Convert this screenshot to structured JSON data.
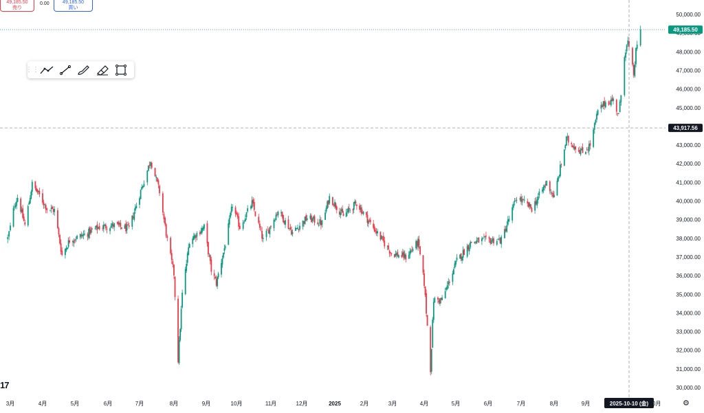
{
  "trade": {
    "sell_price": "49,185.50",
    "sell_label": "売り",
    "spread": "0.00",
    "buy_price": "49,185.50",
    "buy_label": "買い"
  },
  "crosshair": {
    "price_label": "43,917.56",
    "date_label": "2025-10-10 (金)",
    "price_value": 43917.56
  },
  "last_price": {
    "label": "49,185.50",
    "value": 49185.5
  },
  "toolbar": {
    "items": [
      "trend-line-tool",
      "line-tool",
      "brush-tool",
      "highlighter-tool",
      "rectangle-tool"
    ]
  },
  "colors": {
    "up": "#089981",
    "down": "#f23645",
    "last_price_bg": "#089981",
    "crosshair_label_bg": "#131722"
  },
  "chart_data": {
    "type": "candlestick",
    "y_axis": {
      "min": 30000,
      "max": 50000,
      "ticks": [
        "50,000.00",
        "49,000.00",
        "48,000.00",
        "47,000.00",
        "46,000.00",
        "45,000.00",
        "44,000.00",
        "43,000.00",
        "42,000.00",
        "41,000.00",
        "40,000.00",
        "39,000.00",
        "38,000.00",
        "37,000.00",
        "36,000.00",
        "35,000.00",
        "34,000.00",
        "33,000.00",
        "32,000.00",
        "31,000.00",
        "30,000.00"
      ]
    },
    "x_axis": {
      "ticks": [
        "3月",
        "4月",
        "5月",
        "6月",
        "7月",
        "8月",
        "9月",
        "10月",
        "11月",
        "12月",
        "2025",
        "2月",
        "3月",
        "4月",
        "5月",
        "6月",
        "7月",
        "8月",
        "9月",
        "10月"
      ]
    },
    "path": [
      [
        "2024-02-28",
        38000
      ],
      [
        "2024-03-05",
        39800
      ],
      [
        "2024-03-08",
        40200
      ],
      [
        "2024-03-15",
        38700
      ],
      [
        "2024-03-22",
        40900
      ],
      [
        "2024-03-29",
        40300
      ],
      [
        "2024-04-05",
        39600
      ],
      [
        "2024-04-12",
        39500
      ],
      [
        "2024-04-19",
        37100
      ],
      [
        "2024-04-26",
        37900
      ],
      [
        "2024-05-10",
        38200
      ],
      [
        "2024-05-24",
        38600
      ],
      [
        "2024-06-07",
        38700
      ],
      [
        "2024-06-21",
        38500
      ],
      [
        "2024-07-04",
        40900
      ],
      [
        "2024-07-11",
        42200
      ],
      [
        "2024-07-19",
        40500
      ],
      [
        "2024-07-26",
        37900
      ],
      [
        "2024-08-01",
        36100
      ],
      [
        "2024-08-05",
        31500
      ],
      [
        "2024-08-09",
        35000
      ],
      [
        "2024-08-16",
        37900
      ],
      [
        "2024-08-30",
        38600
      ],
      [
        "2024-09-06",
        36300
      ],
      [
        "2024-09-11",
        35600
      ],
      [
        "2024-09-20",
        37700
      ],
      [
        "2024-09-27",
        39800
      ],
      [
        "2024-10-04",
        38600
      ],
      [
        "2024-10-15",
        39900
      ],
      [
        "2024-10-25",
        37900
      ],
      [
        "2024-11-08",
        39500
      ],
      [
        "2024-11-22",
        38300
      ],
      [
        "2024-12-06",
        39100
      ],
      [
        "2024-12-20",
        38800
      ],
      [
        "2024-12-27",
        40200
      ],
      [
        "2025-01-10",
        39200
      ],
      [
        "2025-01-24",
        39900
      ],
      [
        "2025-02-07",
        38800
      ],
      [
        "2025-02-28",
        37200
      ],
      [
        "2025-03-14",
        37000
      ],
      [
        "2025-03-26",
        37800
      ],
      [
        "2025-04-01",
        35600
      ],
      [
        "2025-04-07",
        31000
      ],
      [
        "2025-04-10",
        34700
      ],
      [
        "2025-04-18",
        34700
      ],
      [
        "2025-05-02",
        36800
      ],
      [
        "2025-05-16",
        37800
      ],
      [
        "2025-05-30",
        37900
      ],
      [
        "2025-06-13",
        37900
      ],
      [
        "2025-06-27",
        40200
      ],
      [
        "2025-07-11",
        39600
      ],
      [
        "2025-07-25",
        41000
      ],
      [
        "2025-08-01",
        40200
      ],
      [
        "2025-08-13",
        43300
      ],
      [
        "2025-08-29",
        42600
      ],
      [
        "2025-09-05",
        43000
      ],
      [
        "2025-09-12",
        44800
      ],
      [
        "2025-09-19",
        45300
      ],
      [
        "2025-09-26",
        45400
      ],
      [
        "2025-10-01",
        44600
      ],
      [
        "2025-10-03",
        45700
      ],
      [
        "2025-10-06",
        47900
      ],
      [
        "2025-10-09",
        48500
      ],
      [
        "2025-10-10",
        48100
      ],
      [
        "2025-10-14",
        46800
      ],
      [
        "2025-10-16",
        48000
      ],
      [
        "2025-10-20",
        49185.5
      ]
    ]
  }
}
